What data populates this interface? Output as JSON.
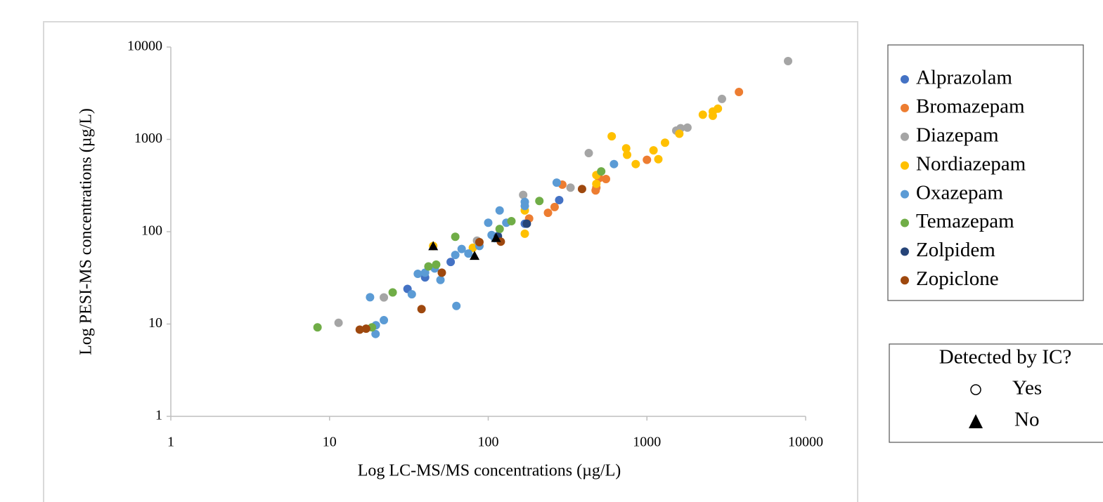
{
  "chart_data": {
    "type": "scatter",
    "xlabel": "Log LC-MS/MS concentrations (µg/L)",
    "ylabel": "Log PESI-MS concentrations (µg/L)",
    "xscale": "log",
    "yscale": "log",
    "xlim": [
      1,
      10000
    ],
    "ylim": [
      1,
      10000
    ],
    "xticks": [
      1,
      10,
      100,
      1000,
      10000
    ],
    "yticks": [
      1,
      10,
      100,
      1000,
      10000
    ],
    "series": [
      {
        "name": "Alprazolam",
        "color": "#4472c4",
        "marker": "circle",
        "legend": "main",
        "x": [
          31,
          40,
          58,
          170,
          280,
          115
        ],
        "values": [
          24,
          32,
          47,
          122,
          220,
          90
        ]
      },
      {
        "name": "Bromazepam",
        "color": "#ed7d31",
        "marker": "circle",
        "legend": "main",
        "x": [
          3800,
          1000,
          552,
          480,
          500,
          293,
          262,
          238,
          181,
          475
        ],
        "values": [
          3260,
          600,
          372,
          300,
          380,
          323,
          185,
          160,
          139,
          280
        ]
      },
      {
        "name": "Diazepam",
        "color": "#a5a5a5",
        "marker": "circle",
        "legend": "main",
        "x": [
          7750,
          2970,
          1530,
          1630,
          1800,
          430,
          330,
          166,
          85,
          22,
          11.4
        ],
        "values": [
          7040,
          2740,
          1245,
          1320,
          1340,
          710,
          300,
          250,
          80,
          19.4,
          10.3
        ]
      },
      {
        "name": "Nordiazepam",
        "color": "#ffc000",
        "marker": "circle",
        "legend": "main",
        "x": [
          2800,
          2600,
          2600,
          2250,
          1600,
          1300,
          1180,
          1100,
          850,
          750,
          740,
          600,
          480,
          480,
          170,
          170,
          80,
          45
        ],
        "values": [
          2150,
          1800,
          2000,
          1850,
          1150,
          920,
          610,
          760,
          540,
          680,
          800,
          1080,
          330,
          410,
          170,
          95,
          67,
          70
        ]
      },
      {
        "name": "Oxazepam",
        "color": "#5b9bd5",
        "marker": "circle",
        "legend": "main",
        "x": [
          620,
          270,
          170,
          170,
          118,
          100,
          130,
          105,
          88,
          75,
          68,
          62,
          50,
          46,
          40,
          36,
          33,
          18,
          22,
          19.6,
          19.5,
          63,
          110
        ],
        "values": [
          540,
          340,
          210,
          190,
          170,
          125,
          125,
          92,
          70,
          58,
          65,
          56,
          30,
          40,
          36,
          35,
          21,
          19.5,
          11,
          9.7,
          7.8,
          15.7,
          85
        ]
      },
      {
        "name": "Temazepam",
        "color": "#70ad47",
        "marker": "circle",
        "legend": "main",
        "x": [
          515,
          210,
          140,
          118,
          62,
          47,
          42,
          25,
          8.4,
          18.5
        ],
        "values": [
          450,
          215,
          130,
          107,
          88,
          44,
          42,
          22,
          9.2,
          9.2
        ]
      },
      {
        "name": "Zolpidem",
        "color": "#264478",
        "marker": "circle",
        "legend": "main",
        "x": [
          175,
          115
        ],
        "values": [
          122,
          88
        ]
      },
      {
        "name": "Zopiclone",
        "color": "#9e480e",
        "marker": "circle",
        "legend": "main",
        "x": [
          390,
          120,
          88,
          51,
          38,
          17,
          15.5
        ],
        "values": [
          290,
          78,
          77,
          36,
          14.5,
          8.9,
          8.7
        ]
      },
      {
        "name": "No",
        "color": "#000000",
        "marker": "triangle",
        "legend": "ic",
        "x": [
          45,
          82,
          112
        ],
        "values": [
          70,
          55,
          86
        ]
      }
    ],
    "ic_legend": {
      "title": "Detected by IC?",
      "yes": "Yes"
    }
  }
}
